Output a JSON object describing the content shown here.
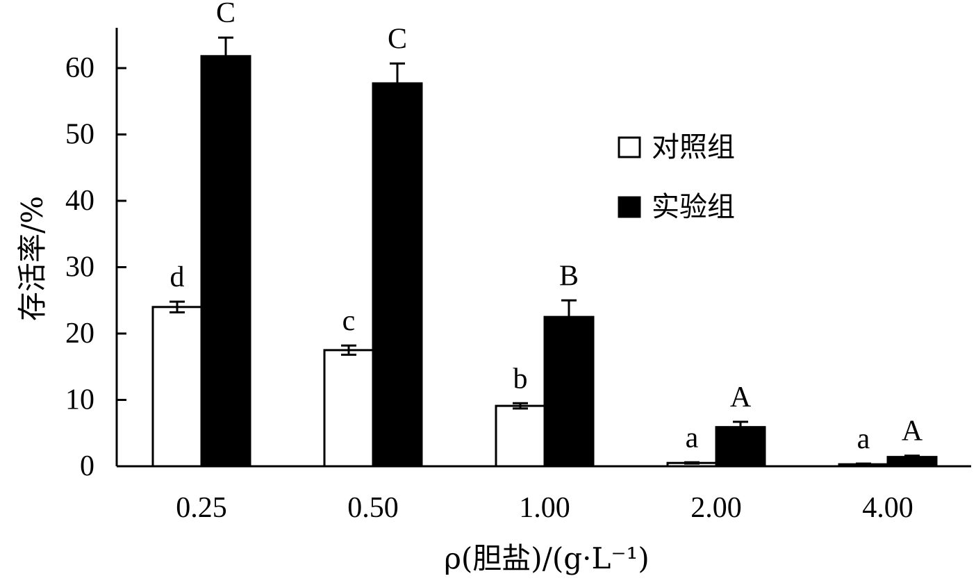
{
  "chart_data": {
    "type": "bar",
    "categories": [
      "0.25",
      "0.50",
      "1.00",
      "2.00",
      "4.00"
    ],
    "xlabel": "ρ(胆盐)/(g·L⁻¹)",
    "ylabel": "存活率/%",
    "ylim": [
      0,
      65
    ],
    "yticks": [
      "0",
      "10",
      "20",
      "30",
      "40",
      "50",
      "60"
    ],
    "grid": false,
    "legend_position": "top-right",
    "series": [
      {
        "name": "对照组",
        "fill": "#ffffff",
        "stroke": "#000000",
        "values": [
          24.0,
          17.5,
          9.1,
          0.5,
          0.3
        ],
        "errors": [
          0.8,
          0.7,
          0.4,
          0.1,
          0.1
        ],
        "labels": [
          "d",
          "c",
          "b",
          "a",
          "a"
        ]
      },
      {
        "name": "实验组",
        "fill": "#000000",
        "stroke": "#000000",
        "values": [
          61.8,
          57.7,
          22.5,
          5.9,
          1.4
        ],
        "errors": [
          2.8,
          3.0,
          2.5,
          0.8,
          0.2
        ],
        "labels": [
          "C",
          "C",
          "B",
          "A",
          "A"
        ]
      }
    ]
  }
}
